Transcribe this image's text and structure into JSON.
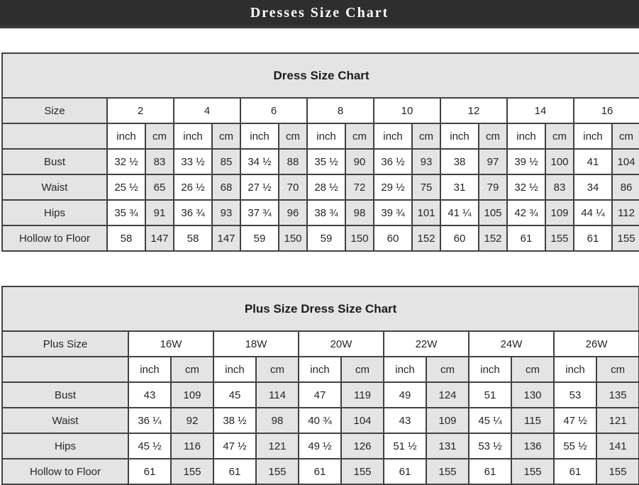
{
  "header": {
    "title": "Dresses Size Chart"
  },
  "tables": [
    {
      "title": "Dress Size Chart",
      "corner_label": "Size",
      "units": [
        "inch",
        "cm"
      ],
      "sizes": [
        "2",
        "4",
        "6",
        "8",
        "10",
        "12",
        "14",
        "16"
      ],
      "rows": [
        {
          "label": "Bust",
          "values": [
            [
              "32 ½",
              "83"
            ],
            [
              "33 ½",
              "85"
            ],
            [
              "34 ½",
              "88"
            ],
            [
              "35 ½",
              "90"
            ],
            [
              "36 ½",
              "93"
            ],
            [
              "38",
              "97"
            ],
            [
              "39 ½",
              "100"
            ],
            [
              "41",
              "104"
            ]
          ]
        },
        {
          "label": "Waist",
          "values": [
            [
              "25 ½",
              "65"
            ],
            [
              "26 ½",
              "68"
            ],
            [
              "27 ½",
              "70"
            ],
            [
              "28 ½",
              "72"
            ],
            [
              "29 ½",
              "75"
            ],
            [
              "31",
              "79"
            ],
            [
              "32 ½",
              "83"
            ],
            [
              "34",
              "86"
            ]
          ]
        },
        {
          "label": "Hips",
          "values": [
            [
              "35 ¾",
              "91"
            ],
            [
              "36 ¾",
              "93"
            ],
            [
              "37 ¾",
              "96"
            ],
            [
              "38 ¾",
              "98"
            ],
            [
              "39 ¾",
              "101"
            ],
            [
              "41 ¼",
              "105"
            ],
            [
              "42 ¾",
              "109"
            ],
            [
              "44 ¼",
              "112"
            ]
          ]
        },
        {
          "label": "Hollow to Floor",
          "values": [
            [
              "58",
              "147"
            ],
            [
              "58",
              "147"
            ],
            [
              "59",
              "150"
            ],
            [
              "59",
              "150"
            ],
            [
              "60",
              "152"
            ],
            [
              "60",
              "152"
            ],
            [
              "61",
              "155"
            ],
            [
              "61",
              "155"
            ]
          ]
        }
      ]
    },
    {
      "title": "Plus Size Dress Size Chart",
      "corner_label": "Plus Size",
      "units": [
        "inch",
        "cm"
      ],
      "sizes": [
        "16W",
        "18W",
        "20W",
        "22W",
        "24W",
        "26W"
      ],
      "rows": [
        {
          "label": "Bust",
          "values": [
            [
              "43",
              "109"
            ],
            [
              "45",
              "114"
            ],
            [
              "47",
              "119"
            ],
            [
              "49",
              "124"
            ],
            [
              "51",
              "130"
            ],
            [
              "53",
              "135"
            ]
          ]
        },
        {
          "label": "Waist",
          "values": [
            [
              "36 ¼",
              "92"
            ],
            [
              "38 ½",
              "98"
            ],
            [
              "40 ¾",
              "104"
            ],
            [
              "43",
              "109"
            ],
            [
              "45 ¼",
              "115"
            ],
            [
              "47 ½",
              "121"
            ]
          ]
        },
        {
          "label": "Hips",
          "values": [
            [
              "45 ½",
              "116"
            ],
            [
              "47 ½",
              "121"
            ],
            [
              "49 ½",
              "126"
            ],
            [
              "51 ½",
              "131"
            ],
            [
              "53 ½",
              "136"
            ],
            [
              "55 ½",
              "141"
            ]
          ]
        },
        {
          "label": "Hollow to Floor",
          "values": [
            [
              "61",
              "155"
            ],
            [
              "61",
              "155"
            ],
            [
              "61",
              "155"
            ],
            [
              "61",
              "155"
            ],
            [
              "61",
              "155"
            ],
            [
              "61",
              "155"
            ]
          ]
        }
      ]
    }
  ],
  "colors": {
    "topbar_bg": "#2e2e2e",
    "topbar_text": "#ffffff",
    "cell_gray": "#e4e4e4",
    "cell_white": "#ffffff",
    "border": "#424242",
    "text": "#262626"
  }
}
